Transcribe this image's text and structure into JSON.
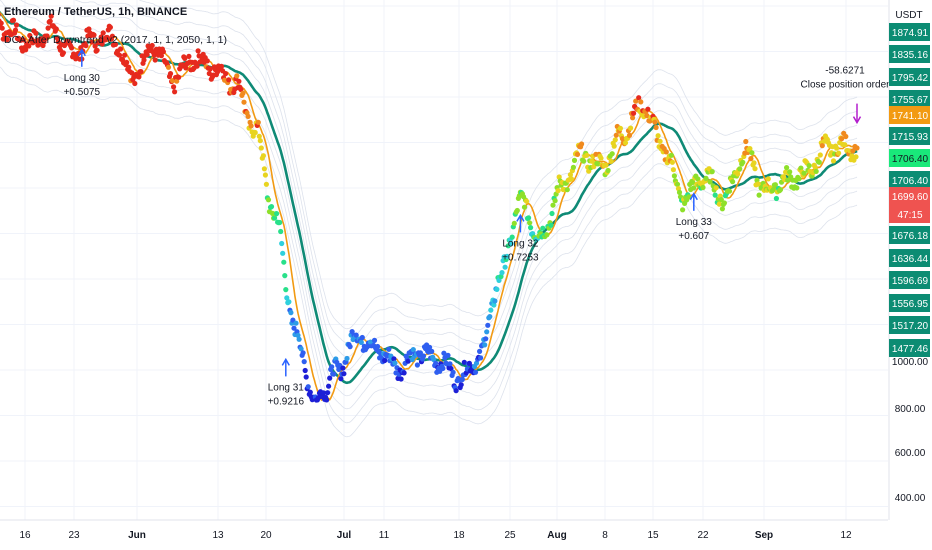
{
  "header": {
    "symbol": "Ethereum / TetherUS, 1h, BINANCE",
    "indicator": "DCA After Downtrend v2 (2017, 1, 1, 2050, 1, 1)"
  },
  "price_axis": {
    "unit": "USDT",
    "badges": [
      {
        "label": "1874.91",
        "color": "#0c8c73"
      },
      {
        "label": "1835.16",
        "color": "#0c8c73"
      },
      {
        "label": "1795.42",
        "color": "#0c8c73"
      },
      {
        "label": "1755.67",
        "color": "#0c8c73"
      },
      {
        "label": "1741.10",
        "color": "#f29a12"
      },
      {
        "label": "1715.93",
        "color": "#0c8c73"
      },
      {
        "label": "1706.40",
        "color": "#19e97a",
        "text_color": "#131722"
      },
      {
        "label": "1706.40",
        "color": "#0c8c73"
      },
      {
        "label": "1699.60",
        "color": "#ef5350"
      },
      {
        "label": "47:15",
        "color": "#ef5350"
      },
      {
        "label": "1676.18",
        "color": "#0c8c73"
      },
      {
        "label": "1636.44",
        "color": "#0c8c73"
      },
      {
        "label": "1596.69",
        "color": "#0c8c73"
      },
      {
        "label": "1556.95",
        "color": "#0c8c73"
      },
      {
        "label": "1517.20",
        "color": "#0c8c73"
      },
      {
        "label": "1477.46",
        "color": "#0c8c73"
      }
    ],
    "ticks": [
      "1000.00",
      "800.00",
      "600.00",
      "400.00"
    ]
  },
  "time_axis": [
    "16",
    "23",
    "Jun",
    "13",
    "20",
    "Jul",
    "11",
    "18",
    "25",
    "Aug",
    "8",
    "15",
    "22",
    "Sep",
    "12"
  ],
  "chart_data": {
    "type": "line",
    "title": "Ethereum / TetherUS, 1h, BINANCE",
    "x_ticks": [
      "16",
      "23",
      "Jun",
      "13",
      "20",
      "Jul",
      "11",
      "18",
      "25",
      "Aug",
      "8",
      "15",
      "22",
      "Sep",
      "12"
    ],
    "y_ticks": [
      "1000.00",
      "800.00",
      "600.00",
      "400.00"
    ],
    "series": [
      {
        "name": "Price",
        "x_day": [
          0,
          4,
          8,
          12,
          16,
          20,
          24,
          28,
          32,
          36,
          40,
          44,
          48,
          52,
          56,
          60,
          64,
          68,
          72,
          76,
          80,
          84,
          88,
          92,
          96,
          100,
          104,
          108,
          112,
          116,
          120,
          124,
          128,
          132,
          136,
          140,
          144,
          148,
          152,
          156,
          160,
          164,
          168,
          170
        ],
        "y": [
          2080,
          2020,
          1990,
          2030,
          1960,
          2000,
          2010,
          1900,
          1980,
          1890,
          1950,
          1920,
          1880,
          1750,
          1500,
          1180,
          980,
          1080,
          1180,
          1140,
          1090,
          1130,
          1110,
          1060,
          1120,
          1340,
          1550,
          1450,
          1590,
          1680,
          1650,
          1740,
          1820,
          1700,
          1560,
          1620,
          1560,
          1690,
          1580,
          1610,
          1630,
          1700,
          1705,
          1700
        ]
      }
    ],
    "annotations": [
      {
        "x_day": 18,
        "y": 1920,
        "label": "Long 30",
        "value": "+0.5075",
        "color": "#2962ff"
      },
      {
        "x_day": 58,
        "y": 1060,
        "label": "Long 31",
        "value": "+0.9216",
        "color": "#2962ff"
      },
      {
        "x_day": 104,
        "y": 1460,
        "label": "Long 32",
        "value": "+0.7253",
        "color": "#2962ff"
      },
      {
        "x_day": 138,
        "y": 1520,
        "label": "Long 33",
        "value": "+0.607",
        "color": "#2962ff"
      },
      {
        "x_day": 170,
        "y": 1740,
        "label": "-58.6271",
        "value": "Close position order",
        "color": "#b31ecd"
      }
    ],
    "grid": true
  }
}
